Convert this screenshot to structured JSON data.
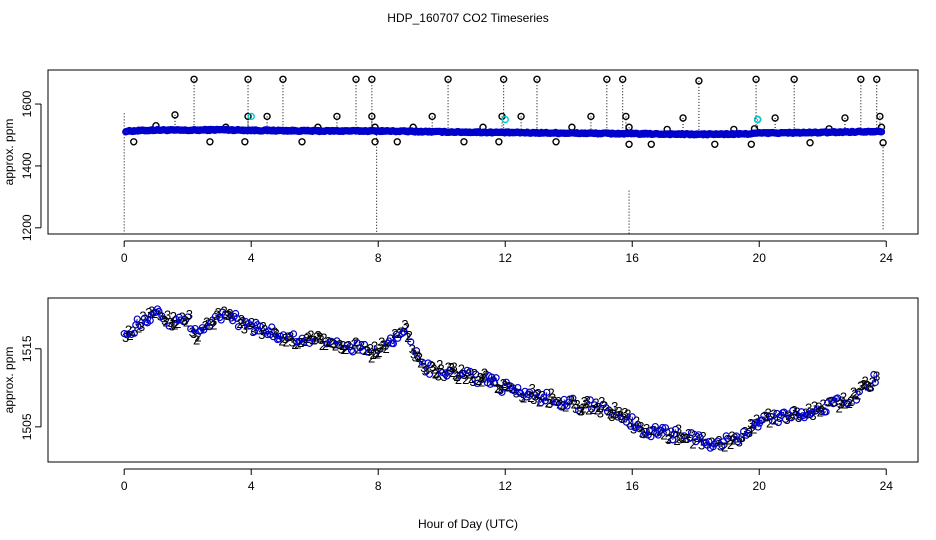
{
  "title": "HDP_160707  CO2 Timeseries",
  "xlabel": "Hour of Day (UTC)",
  "colors": {
    "black": "#000000",
    "blue": "#0000cc",
    "cyan": "#00cccc",
    "green": "#22cc22"
  },
  "chart_data": [
    {
      "type": "scatter",
      "ylabel": "approx. ppm",
      "xlim": [
        -2.4,
        25.0
      ],
      "ylim": [
        1180,
        1710
      ],
      "x_ticks": [
        0,
        4,
        8,
        12,
        16,
        20,
        24
      ],
      "y_ticks": [
        1200,
        1400,
        1600
      ],
      "baseline": [
        [
          0.0,
          1512
        ],
        [
          1.0,
          1516
        ],
        [
          2.0,
          1515
        ],
        [
          3.0,
          1517
        ],
        [
          4.0,
          1515
        ],
        [
          6.0,
          1513
        ],
        [
          8.0,
          1513
        ],
        [
          10.0,
          1510
        ],
        [
          12.0,
          1508
        ],
        [
          14.0,
          1506
        ],
        [
          16.0,
          1504
        ],
        [
          18.0,
          1502
        ],
        [
          19.5,
          1503
        ],
        [
          20.0,
          1506
        ],
        [
          22.0,
          1508
        ],
        [
          23.8,
          1512
        ]
      ],
      "spike_points": [
        [
          0.3,
          1478
        ],
        [
          1.0,
          1530
        ],
        [
          1.6,
          1565
        ],
        [
          2.2,
          1680
        ],
        [
          2.7,
          1478
        ],
        [
          3.2,
          1525
        ],
        [
          3.8,
          1478
        ],
        [
          3.9,
          1680
        ],
        [
          3.9,
          1560
        ],
        [
          4.5,
          1560
        ],
        [
          5.0,
          1680
        ],
        [
          5.6,
          1478
        ],
        [
          6.1,
          1525
        ],
        [
          6.7,
          1560
        ],
        [
          7.3,
          1680
        ],
        [
          7.8,
          1680
        ],
        [
          7.8,
          1560
        ],
        [
          7.9,
          1525
        ],
        [
          7.9,
          1478
        ],
        [
          8.6,
          1478
        ],
        [
          9.1,
          1525
        ],
        [
          9.7,
          1560
        ],
        [
          10.2,
          1680
        ],
        [
          10.7,
          1478
        ],
        [
          11.3,
          1525
        ],
        [
          11.8,
          1478
        ],
        [
          11.9,
          1560
        ],
        [
          11.95,
          1680
        ],
        [
          12.5,
          1560
        ],
        [
          13.0,
          1680
        ],
        [
          13.6,
          1478
        ],
        [
          14.1,
          1525
        ],
        [
          14.7,
          1560
        ],
        [
          15.2,
          1680
        ],
        [
          15.7,
          1680
        ],
        [
          15.8,
          1560
        ],
        [
          15.9,
          1525
        ],
        [
          15.9,
          1470
        ],
        [
          16.6,
          1470
        ],
        [
          17.1,
          1518
        ],
        [
          17.6,
          1555
        ],
        [
          18.1,
          1675
        ],
        [
          18.6,
          1470
        ],
        [
          19.2,
          1518
        ],
        [
          19.75,
          1470
        ],
        [
          19.85,
          1520
        ],
        [
          19.9,
          1680
        ],
        [
          19.95,
          1550
        ],
        [
          20.5,
          1555
        ],
        [
          21.1,
          1680
        ],
        [
          21.6,
          1475
        ],
        [
          22.2,
          1520
        ],
        [
          22.7,
          1555
        ],
        [
          23.2,
          1680
        ],
        [
          23.7,
          1680
        ],
        [
          23.8,
          1560
        ],
        [
          23.85,
          1525
        ],
        [
          23.9,
          1475
        ]
      ],
      "cyan_points": [
        [
          4.0,
          1560
        ],
        [
          12.0,
          1550
        ],
        [
          19.95,
          1550
        ]
      ],
      "drop_lines": [
        [
          0.0,
          1570,
          1180
        ],
        [
          7.95,
          1520,
          1180
        ],
        [
          15.9,
          1320,
          1180
        ],
        [
          23.9,
          1470,
          1190
        ]
      ]
    },
    {
      "type": "scatter",
      "ylabel": "approx. ppm",
      "xlim": [
        -2.4,
        25.0
      ],
      "ylim": [
        1500.5,
        1521.5
      ],
      "x_ticks": [
        0,
        4,
        8,
        12,
        16,
        20,
        24
      ],
      "y_ticks": [
        1505,
        1515
      ],
      "anchors": [
        [
          0.0,
          1516.5
        ],
        [
          0.5,
          1518.5
        ],
        [
          1.0,
          1519.5
        ],
        [
          1.5,
          1518.5
        ],
        [
          2.0,
          1519.0
        ],
        [
          2.3,
          1516.5
        ],
        [
          2.8,
          1518.8
        ],
        [
          3.3,
          1519.5
        ],
        [
          3.8,
          1518.0
        ],
        [
          4.5,
          1517.5
        ],
        [
          5.0,
          1516.5
        ],
        [
          6.0,
          1516.0
        ],
        [
          7.0,
          1515.5
        ],
        [
          7.8,
          1514.5
        ],
        [
          8.3,
          1515.5
        ],
        [
          8.9,
          1517.5
        ],
        [
          9.2,
          1514.0
        ],
        [
          9.6,
          1512.5
        ],
        [
          10.5,
          1511.8
        ],
        [
          11.5,
          1511.0
        ],
        [
          12.0,
          1510.0
        ],
        [
          13.0,
          1509.0
        ],
        [
          14.0,
          1508.0
        ],
        [
          15.0,
          1507.5
        ],
        [
          15.7,
          1506.5
        ],
        [
          16.3,
          1504.5
        ],
        [
          17.5,
          1504.0
        ],
        [
          18.5,
          1503.0
        ],
        [
          19.3,
          1503.3
        ],
        [
          19.8,
          1505.0
        ],
        [
          20.3,
          1506.0
        ],
        [
          21.0,
          1506.5
        ],
        [
          22.0,
          1507.5
        ],
        [
          22.5,
          1508.0
        ],
        [
          23.0,
          1509.0
        ],
        [
          23.6,
          1511.0
        ]
      ],
      "glyphs": [
        "2",
        "3"
      ]
    }
  ]
}
